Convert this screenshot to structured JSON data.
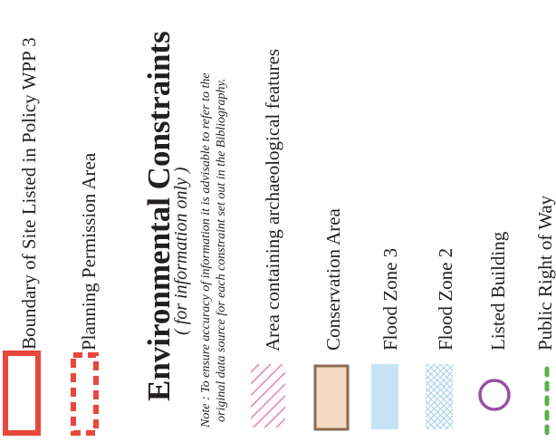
{
  "legend": {
    "items_top": [
      {
        "id": "boundary_wpp3",
        "label": "Boundary of Site Listed in Policy WPP 3",
        "symbol": "solid-red-rectangle",
        "color": "#e8473b"
      },
      {
        "id": "planning_permission",
        "label": "Planning Permission Area",
        "symbol": "dashed-red-rectangle",
        "color": "#e8473b"
      }
    ],
    "section": {
      "title": "Environmental Constraints",
      "subtitle": "( for information only )",
      "note_line1": "Note : To ensure accuracy of information it is advisable to refer to the",
      "note_line2": "original data source for each constraint set out in the Bibliography."
    },
    "items_env": [
      {
        "id": "archaeology",
        "label": "Area containing archaeological features",
        "symbol": "pink-diagonal-hatch",
        "color": "#e8559a"
      },
      {
        "id": "conservation",
        "label": "Conservation Area",
        "symbol": "tan-filled-box",
        "fill": "#f2dbc0",
        "stroke": "#8c6a52"
      },
      {
        "id": "flood3",
        "label": "Flood Zone 3",
        "symbol": "light-blue-box",
        "fill": "#c6e4f5"
      },
      {
        "id": "flood2",
        "label": "Flood Zone 2",
        "symbol": "light-blue-crosshatch",
        "color": "#a9d2ea"
      },
      {
        "id": "listed_building",
        "label": "Listed Building",
        "symbol": "purple-circle",
        "color": "#9a4fa6"
      },
      {
        "id": "prow",
        "label": "Public Right of Way",
        "symbol": "green-dashed-line",
        "color": "#5ab14a"
      }
    ]
  }
}
